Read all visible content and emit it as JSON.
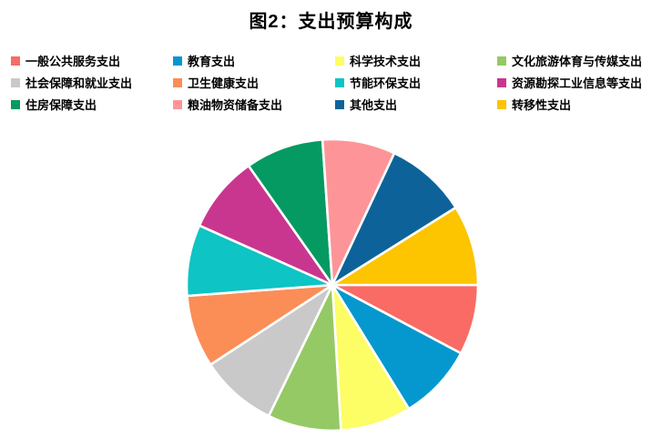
{
  "title": "图2：支出预算构成",
  "chart_data": {
    "type": "pie",
    "title": "图2：支出预算构成",
    "categories": [
      "一般公共服务支出",
      "教育支出",
      "科学技术支出",
      "文化旅游体育与传媒支出",
      "社会保障和就业支出",
      "卫生健康支出",
      "节能环保支出",
      "资源勘探工业信息等支出",
      "住房保障支出",
      "粮油物资储备支出",
      "其他支出",
      "转移性支出"
    ],
    "values_pct_est": [
      7.8,
      8.4,
      7.9,
      8.1,
      8.6,
      8.0,
      7.9,
      8.6,
      8.7,
      8.1,
      9.1,
      8.9
    ],
    "angles_deg": [
      28.0,
      30.3,
      28.3,
      29.3,
      30.9,
      28.9,
      28.4,
      30.8,
      31.2,
      29.1,
      32.7,
      32.1
    ],
    "colors": [
      "#F96B64",
      "#0598CE",
      "#FDFD66",
      "#95C965",
      "#C9C9C9",
      "#FB8D57",
      "#0EC4C4",
      "#C9368F",
      "#059A62",
      "#FD9598",
      "#0D6399",
      "#FDC400"
    ],
    "start_angle_deg": 90,
    "direction": "clockwise",
    "data_labels": "none",
    "legend_position": "top",
    "legend_columns": 4,
    "slice_border_color": "#FFFFFF",
    "background_color": "#FFFFFF",
    "title_color": "#000000",
    "legend_text_color": "#000000"
  }
}
